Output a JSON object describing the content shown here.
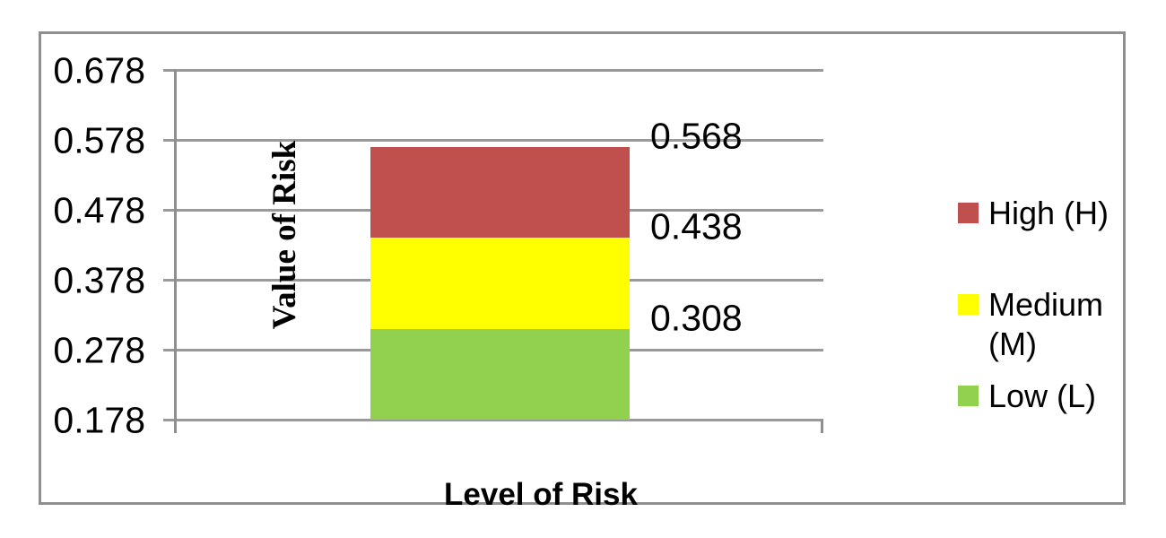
{
  "chart_data": {
    "type": "bar",
    "xlabel": "Level of Risk",
    "ylabel": "Value of Risk",
    "categories": [
      ""
    ],
    "series": [
      {
        "name": "High (H)",
        "value": 0.568,
        "label": "0.568",
        "color": "#c0504d"
      },
      {
        "name": "Medium (M)",
        "value": 0.438,
        "label": "0.438",
        "color": "#ffff00"
      },
      {
        "name": "Low (L)",
        "value": 0.308,
        "label": "0.308",
        "color": "#92d050"
      }
    ],
    "ylim": [
      0.178,
      0.678
    ],
    "ytick_step": 0.1,
    "ytick_labels": [
      "0.678",
      "0.578",
      "0.478",
      "0.378",
      "0.278",
      "0.178"
    ],
    "grid": true,
    "legend_position": "right"
  },
  "colors": {
    "gridline": "#9a9a9a",
    "axis": "#8f8f8f",
    "frame_border": "#8f8f8f",
    "text": "#000000",
    "background": "#ffffff"
  }
}
